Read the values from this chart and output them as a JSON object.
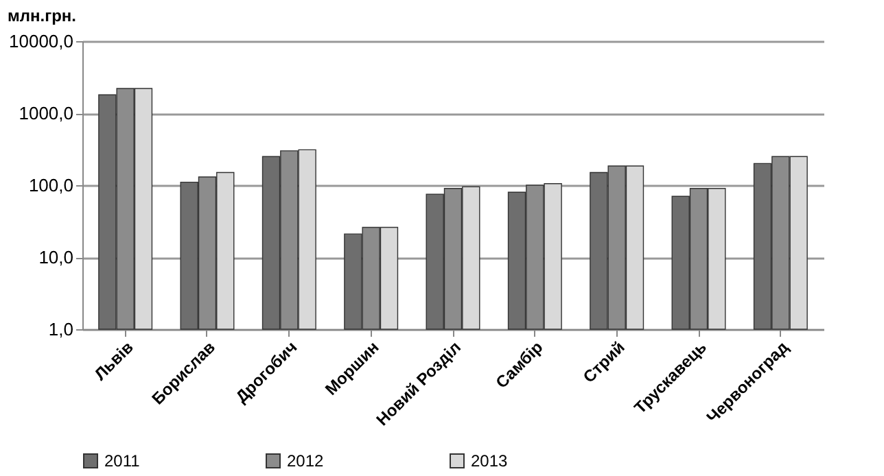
{
  "chart_data": {
    "type": "bar",
    "ylabel": "млн.грн.",
    "categories": [
      "Львів",
      "Борислав",
      "Дрогобич",
      "Моршин",
      "Новий Розділ",
      "Самбір",
      "Стрий",
      "Трускавець",
      "Червоноград"
    ],
    "series": [
      {
        "name": "2011",
        "color": "#6e6e6e",
        "values": [
          1800,
          110,
          250,
          21,
          75,
          80,
          150,
          70,
          200
        ]
      },
      {
        "name": "2012",
        "color": "#8c8c8c",
        "values": [
          2200,
          130,
          300,
          26,
          90,
          100,
          185,
          90,
          250
        ]
      },
      {
        "name": "2013",
        "color": "#d9d9d9",
        "values": [
          2200,
          150,
          310,
          26,
          95,
          105,
          185,
          90,
          250
        ]
      }
    ],
    "log": "y",
    "ylim": [
      1,
      10000
    ],
    "yticks": [
      {
        "value": 1,
        "label": "1,0"
      },
      {
        "value": 10,
        "label": "10,0"
      },
      {
        "value": 100,
        "label": "100,0"
      },
      {
        "value": 1000,
        "label": "1000,0"
      },
      {
        "value": 10000,
        "label": "10000,0"
      }
    ],
    "grid": "y",
    "legend": "bottom"
  }
}
